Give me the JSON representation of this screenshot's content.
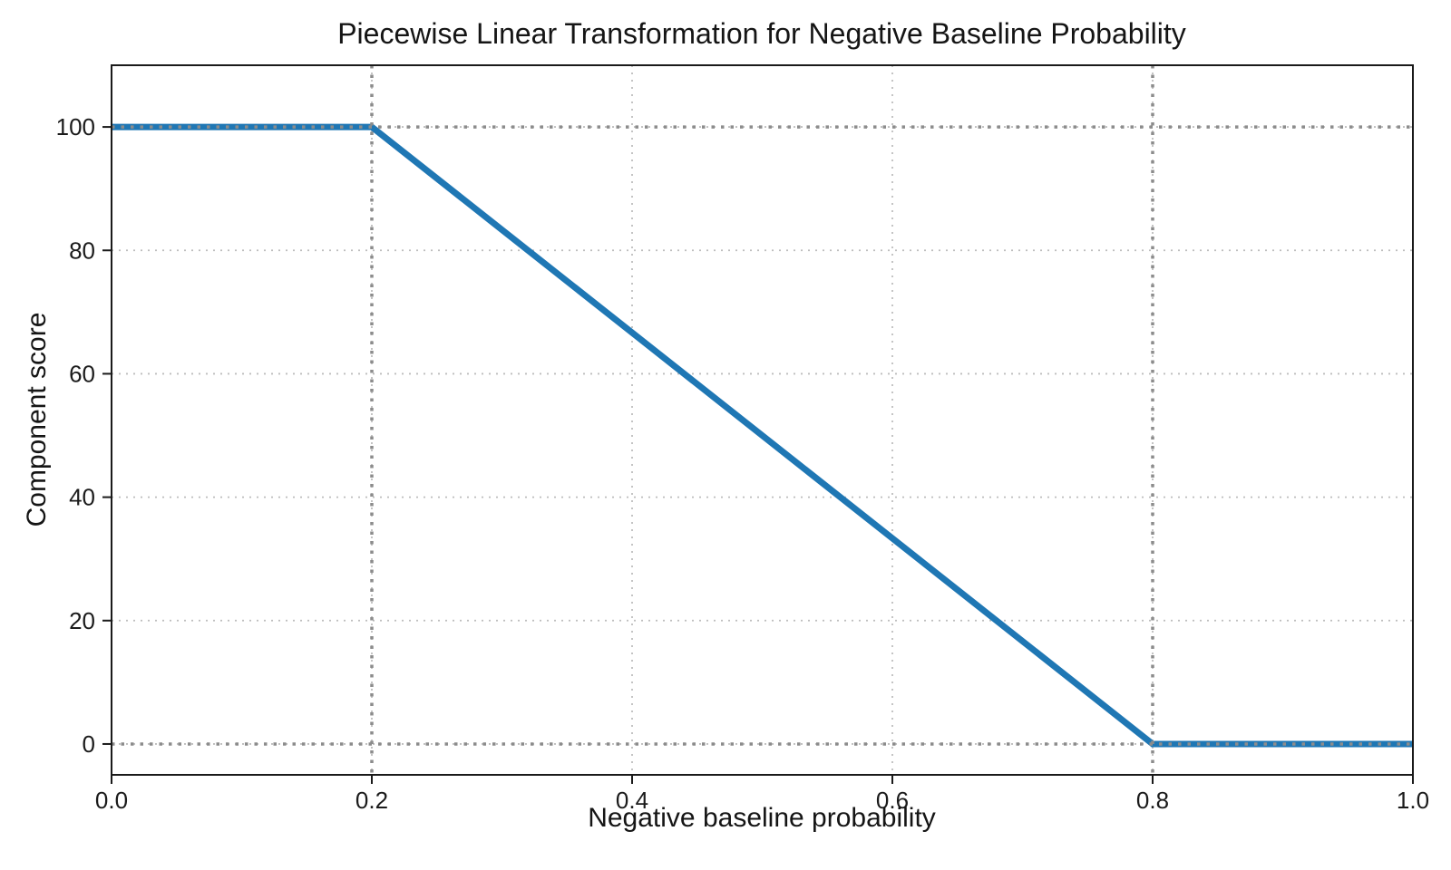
{
  "page": {
    "background": "#ffffff"
  },
  "chart_data": {
    "type": "line",
    "title": "Piecewise Linear Transformation for Negative Baseline Probability",
    "xlabel": "Negative baseline probability",
    "ylabel": "Component score",
    "xlim": [
      0.0,
      1.0
    ],
    "ylim": [
      -5,
      110
    ],
    "x_ticks": [
      0.0,
      0.2,
      0.4,
      0.6,
      0.8,
      1.0
    ],
    "x_tick_labels": [
      "0.0",
      "0.2",
      "0.4",
      "0.6",
      "0.8",
      "1.0"
    ],
    "y_ticks": [
      0,
      20,
      40,
      60,
      80,
      100
    ],
    "y_tick_labels": [
      "0",
      "20",
      "40",
      "60",
      "80",
      "100"
    ],
    "grid": true,
    "grid_style": "dotted",
    "legend": false,
    "series": [
      {
        "name": "component-score-transform",
        "x": [
          0.0,
          0.2,
          0.8,
          1.0
        ],
        "y": [
          100,
          100,
          0,
          0
        ],
        "color": "#1f77b4",
        "linewidth": 7
      }
    ],
    "reference_lines": {
      "vertical_x": [
        0.2,
        0.8
      ],
      "horizontal_y": [
        0,
        100
      ],
      "color": "#8c8c8c",
      "style": "dotted"
    }
  },
  "colors": {
    "accent_line": "#1f77b4",
    "reference_line": "#8c8c8c",
    "grid": "#bdbdbd",
    "spine": "#1a1a1a",
    "text": "#1b1b1b"
  }
}
